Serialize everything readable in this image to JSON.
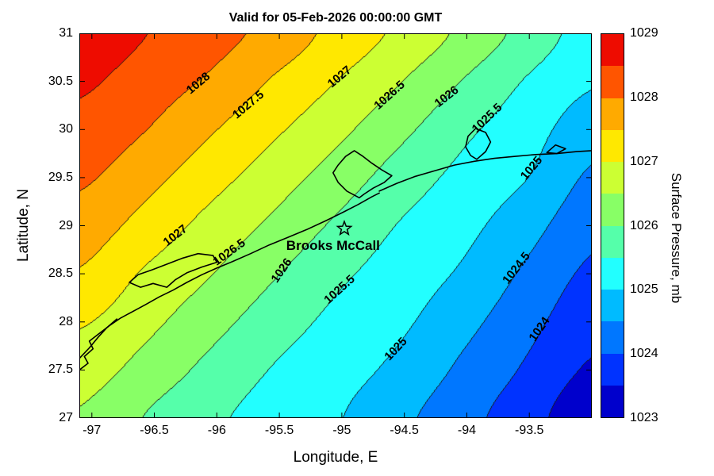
{
  "figure": {
    "title": "Valid for 05-Feb-2026 00:00:00 GMT",
    "background": "#FFFFFF"
  },
  "axes": {
    "xlabel": "Longitude, E",
    "ylabel": "Latitude, N",
    "xlim": [
      -97.1,
      -93.0
    ],
    "ylim": [
      27.0,
      31.0
    ],
    "x_ticks": [
      {
        "label": "-97",
        "value": -97.0
      },
      {
        "label": "-96.5",
        "value": -96.5
      },
      {
        "label": "-96",
        "value": -96.0
      },
      {
        "label": "-95.5",
        "value": -95.5
      },
      {
        "label": "-95",
        "value": -95.0
      },
      {
        "label": "-94.5",
        "value": -94.5
      },
      {
        "label": "-94",
        "value": -94.0
      },
      {
        "label": "-93.5",
        "value": -93.5
      }
    ],
    "y_ticks": [
      {
        "label": "27",
        "value": 27.0
      },
      {
        "label": "27.5",
        "value": 27.5
      },
      {
        "label": "28",
        "value": 28.0
      },
      {
        "label": "28.5",
        "value": 28.5
      },
      {
        "label": "29",
        "value": 29.0
      },
      {
        "label": "29.5",
        "value": 29.5
      },
      {
        "label": "30",
        "value": 30.0
      },
      {
        "label": "30.5",
        "value": 30.5
      },
      {
        "label": "31",
        "value": 31.0
      }
    ]
  },
  "colorbar": {
    "label": "Surface Pressure, mb",
    "min": 1023,
    "max": 1029,
    "ticks": [
      {
        "label": "1023",
        "value": 1023
      },
      {
        "label": "1024",
        "value": 1024
      },
      {
        "label": "1025",
        "value": 1025
      },
      {
        "label": "1026",
        "value": 1026
      },
      {
        "label": "1027",
        "value": 1027
      },
      {
        "label": "1028",
        "value": 1028
      },
      {
        "label": "1029",
        "value": 1029
      }
    ],
    "band_colors": [
      "#0000CC",
      "#0033FF",
      "#0077FF",
      "#00BBFF",
      "#22FFFF",
      "#55FFAA",
      "#88FF66",
      "#CCFF33",
      "#FFE800",
      "#FFAA00",
      "#FF5500",
      "#EE0C00"
    ]
  },
  "chart_data": {
    "type": "heatmap",
    "subtype": "filled_contour",
    "title": "Valid for 05-Feb-2026 00:00:00 GMT",
    "xlabel": "Longitude, E",
    "ylabel": "Latitude, N",
    "zlabel": "Surface Pressure, mb",
    "zlim": [
      1023,
      1029
    ],
    "contour_interval": 0.5,
    "contour_levels": [
      1023.5,
      1024,
      1024.5,
      1025,
      1025.5,
      1026,
      1026.5,
      1027,
      1027.5,
      1028,
      1028.5
    ],
    "x": [
      -97.1,
      -96.5875,
      -96.075,
      -95.5625,
      -95.05,
      -94.5375,
      -94.025,
      -93.5125,
      -93.0
    ],
    "y": [
      27.0,
      27.5,
      28.0,
      28.5,
      29.0,
      29.5,
      30.0,
      30.5,
      31.0
    ],
    "grid": [
      [
        1026.45,
        1025.99,
        1025.61,
        1025.31,
        1025.04,
        1024.62,
        1024.16,
        1023.69,
        1023.13
      ],
      [
        1026.74,
        1026.33,
        1025.88,
        1025.48,
        1025.2,
        1024.87,
        1024.39,
        1023.92,
        1023.43
      ],
      [
        1027.05,
        1026.65,
        1026.2,
        1025.75,
        1025.38,
        1025.09,
        1024.65,
        1024.15,
        1023.67
      ],
      [
        1027.45,
        1026.95,
        1026.54,
        1026.06,
        1025.61,
        1025.27,
        1024.92,
        1024.4,
        1023.9
      ],
      [
        1027.77,
        1027.33,
        1026.85,
        1026.41,
        1025.92,
        1025.47,
        1025.14,
        1024.68,
        1024.15
      ],
      [
        1028.08,
        1027.68,
        1027.21,
        1026.75,
        1026.28,
        1025.77,
        1025.35,
        1025.0,
        1024.42
      ],
      [
        1028.33,
        1028.02,
        1027.57,
        1027.1,
        1026.64,
        1026.13,
        1025.61,
        1025.2,
        1024.72
      ],
      [
        1028.59,
        1028.27,
        1027.94,
        1027.46,
        1027.0,
        1026.52,
        1025.97,
        1025.45,
        1025.05
      ],
      [
        1028.84,
        1028.52,
        1028.21,
        1027.84,
        1027.35,
        1026.89,
        1026.38,
        1025.81,
        1025.29
      ]
    ],
    "contour_labels": [
      {
        "text": "1028",
        "lon": -96.15,
        "lat": 30.48,
        "rot": -40
      },
      {
        "text": "1027.5",
        "lon": -95.75,
        "lat": 30.26,
        "rot": -40
      },
      {
        "text": "1027",
        "lon": -95.02,
        "lat": 30.55,
        "rot": -40
      },
      {
        "text": "1026.5",
        "lon": -94.62,
        "lat": 30.36,
        "rot": -42
      },
      {
        "text": "1026",
        "lon": -94.16,
        "lat": 30.34,
        "rot": -38
      },
      {
        "text": "1025.5",
        "lon": -93.84,
        "lat": 30.12,
        "rot": -44
      },
      {
        "text": "1025",
        "lon": -93.48,
        "lat": 29.6,
        "rot": -50
      },
      {
        "text": "1027",
        "lon": -96.33,
        "lat": 28.9,
        "rot": -38
      },
      {
        "text": "1026.5",
        "lon": -95.9,
        "lat": 28.72,
        "rot": -36
      },
      {
        "text": "1026",
        "lon": -95.48,
        "lat": 28.53,
        "rot": -55
      },
      {
        "text": "1025.5",
        "lon": -95.02,
        "lat": 28.34,
        "rot": -42
      },
      {
        "text": "1025",
        "lon": -94.57,
        "lat": 27.72,
        "rot": -47
      },
      {
        "text": "1024.5",
        "lon": -93.6,
        "lat": 28.56,
        "rot": -52
      },
      {
        "text": "1024",
        "lon": -93.42,
        "lat": 27.92,
        "rot": -55
      }
    ],
    "station": {
      "name": "Brooks McCall",
      "lon": -94.98,
      "lat": 28.97,
      "label_lon": -95.07,
      "label_lat": 28.79
    },
    "coastline": [
      [
        [
          -97.1,
          27.5
        ],
        [
          -97.03,
          27.57
        ],
        [
          -97.06,
          27.64
        ],
        [
          -96.99,
          27.72
        ],
        [
          -97.02,
          27.8
        ],
        [
          -96.94,
          27.88
        ],
        [
          -96.86,
          27.96
        ],
        [
          -96.77,
          28.04
        ],
        [
          -96.67,
          28.11
        ],
        [
          -96.57,
          28.18
        ],
        [
          -96.46,
          28.26
        ],
        [
          -96.35,
          28.33
        ],
        [
          -96.24,
          28.41
        ],
        [
          -96.12,
          28.49
        ],
        [
          -96.0,
          28.56
        ],
        [
          -95.87,
          28.63
        ],
        [
          -95.73,
          28.71
        ],
        [
          -95.58,
          28.8
        ],
        [
          -95.43,
          28.88
        ],
        [
          -95.28,
          28.96
        ],
        [
          -95.13,
          29.05
        ],
        [
          -94.99,
          29.14
        ],
        [
          -94.87,
          29.22
        ],
        [
          -94.76,
          29.3
        ],
        [
          -94.7,
          29.34
        ]
      ],
      [
        [
          -94.7,
          29.36
        ],
        [
          -94.56,
          29.44
        ],
        [
          -94.42,
          29.51
        ],
        [
          -94.26,
          29.57
        ],
        [
          -94.1,
          29.63
        ],
        [
          -93.94,
          29.67
        ],
        [
          -93.78,
          29.7
        ],
        [
          -93.62,
          29.72
        ],
        [
          -93.45,
          29.74
        ],
        [
          -93.28,
          29.75
        ],
        [
          -93.12,
          29.77
        ],
        [
          -93.0,
          29.78
        ]
      ],
      [
        [
          -94.86,
          29.29
        ],
        [
          -94.96,
          29.36
        ],
        [
          -95.03,
          29.45
        ],
        [
          -95.07,
          29.55
        ],
        [
          -95.03,
          29.63
        ],
        [
          -94.97,
          29.72
        ],
        [
          -94.9,
          29.78
        ],
        [
          -94.83,
          29.72
        ],
        [
          -94.76,
          29.65
        ],
        [
          -94.68,
          29.58
        ],
        [
          -94.6,
          29.52
        ],
        [
          -94.66,
          29.45
        ],
        [
          -94.75,
          29.39
        ],
        [
          -94.82,
          29.33
        ],
        [
          -94.86,
          29.29
        ]
      ],
      [
        [
          -96.4,
          28.36
        ],
        [
          -96.51,
          28.4
        ],
        [
          -96.61,
          28.36
        ],
        [
          -96.7,
          28.41
        ],
        [
          -96.63,
          28.49
        ],
        [
          -96.52,
          28.54
        ],
        [
          -96.4,
          28.6
        ],
        [
          -96.28,
          28.66
        ],
        [
          -96.15,
          28.71
        ],
        [
          -96.03,
          28.69
        ],
        [
          -96.0,
          28.62
        ],
        [
          -96.12,
          28.57
        ],
        [
          -96.24,
          28.51
        ],
        [
          -96.33,
          28.44
        ],
        [
          -96.4,
          28.36
        ]
      ],
      [
        [
          -93.92,
          29.69
        ],
        [
          -93.85,
          29.77
        ],
        [
          -93.81,
          29.87
        ],
        [
          -93.85,
          29.97
        ],
        [
          -93.93,
          30.01
        ],
        [
          -93.99,
          29.93
        ],
        [
          -94.01,
          29.82
        ],
        [
          -93.97,
          29.73
        ],
        [
          -93.92,
          29.69
        ]
      ],
      [
        [
          -93.36,
          29.76
        ],
        [
          -93.29,
          29.84
        ],
        [
          -93.21,
          29.8
        ],
        [
          -93.28,
          29.75
        ],
        [
          -93.36,
          29.76
        ]
      ],
      [
        [
          -97.1,
          27.62
        ],
        [
          -97.02,
          27.73
        ],
        [
          -96.95,
          27.84
        ],
        [
          -96.88,
          27.94
        ],
        [
          -96.8,
          28.03
        ]
      ]
    ]
  }
}
